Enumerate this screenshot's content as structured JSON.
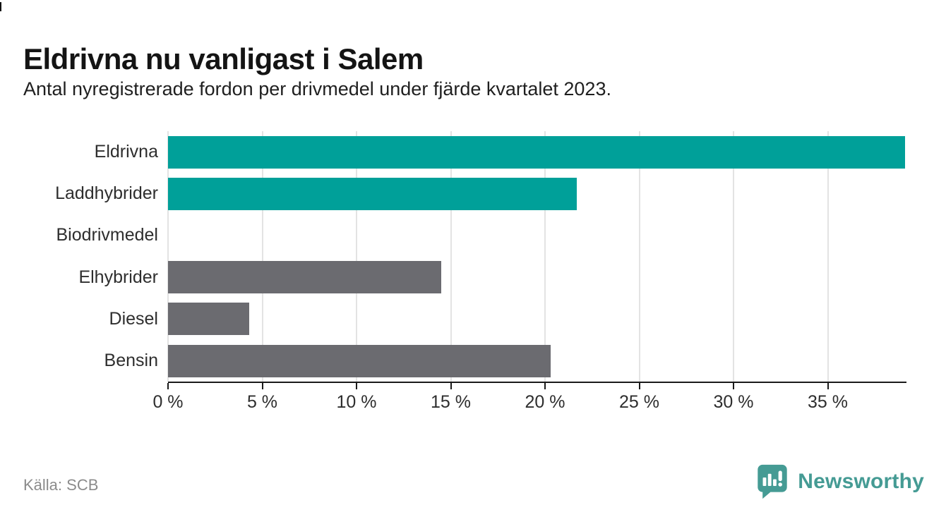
{
  "header": {
    "title": "Eldrivna nu vanligast i Salem",
    "subtitle": "Antal nyregistrerade fordon per drivmedel under fjärde kvartalet 2023."
  },
  "chart_data": {
    "type": "bar",
    "orientation": "horizontal",
    "title": "Eldrivna nu vanligast i Salem",
    "subtitle": "Antal nyregistrerade fordon per drivmedel under fjärde kvartalet 2023.",
    "categories": [
      "Eldrivna",
      "Laddhybrider",
      "Biodrivmedel",
      "Elhybrider",
      "Diesel",
      "Bensin"
    ],
    "values": [
      39.1,
      21.7,
      0,
      14.5,
      4.3,
      20.3
    ],
    "unit": "%",
    "xlim": [
      0,
      39.1
    ],
    "x_tick_values": [
      0,
      5,
      10,
      15,
      20,
      25,
      30,
      35
    ],
    "x_tick_labels": [
      "0 %",
      "5 %",
      "10 %",
      "15 %",
      "20 %",
      "25 %",
      "30 %",
      "35 %"
    ],
    "grid": true,
    "legend": false,
    "bar_colors": [
      "#00A099",
      "#00A099",
      "#6B6B70",
      "#6B6B70",
      "#6B6B70",
      "#6B6B70"
    ],
    "highlight_color": "#00A099",
    "default_color": "#6B6B70",
    "grid_color": "#e3e3e3",
    "axis_color": "#1a1a1a"
  },
  "footer": {
    "source": "Källa: SCB",
    "brand": "Newsworthy",
    "brand_color": "#459b94"
  }
}
